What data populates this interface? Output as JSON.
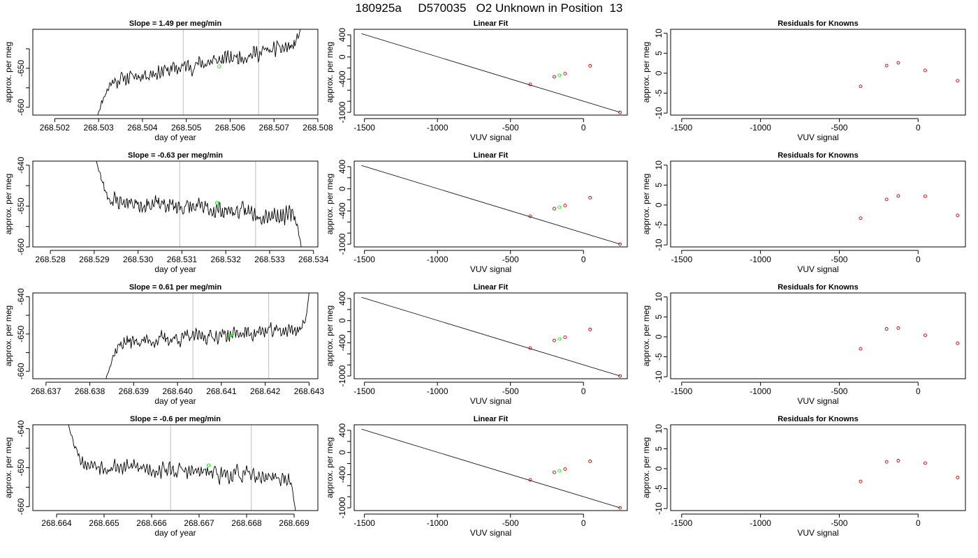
{
  "page": {
    "title": "180925a     D570035   O2 Unknown in Position  13"
  },
  "colors": {
    "line": "#000000",
    "marker": "#00ff00",
    "residual": "#cc0000",
    "vline": "#bebebe",
    "axis": "#000000"
  },
  "chart_data": [
    {
      "type": "line",
      "panel": "time",
      "row": 1,
      "title": "Slope =  1.49  per meg/min",
      "xlabel": "day of year",
      "ylabel": "approx. per meg",
      "xlim": [
        268.5015,
        268.508
      ],
      "ylim": [
        -662,
        -640
      ],
      "xticks": [
        268.502,
        268.503,
        268.504,
        268.505,
        268.506,
        268.507,
        268.508
      ],
      "xtick_labels": [
        "268.502",
        "268.503",
        "268.504",
        "268.505",
        "268.506",
        "268.507",
        "268.508"
      ],
      "yticks": [
        -660,
        -655,
        -650,
        -645
      ],
      "ytick_labels": [
        "-660",
        "",
        "-650",
        ""
      ],
      "vlines": [
        268.50493,
        268.50665
      ],
      "marker": {
        "x": 268.50575,
        "y": -649.5
      },
      "x_start": 268.50298,
      "x_end": 268.5076,
      "y_start": -662,
      "y_end": -640,
      "trend_start": -653.9,
      "slope_per_day": 2145,
      "noise": 2.4,
      "seed": 11
    },
    {
      "type": "line",
      "panel": "fit",
      "row": 1,
      "title": "Linear Fit",
      "xlabel": "VUV signal",
      "ylabel": "approx. per meg",
      "xlim": [
        -1570,
        300
      ],
      "ylim": [
        -1050,
        500
      ],
      "xticks": [
        -1500,
        -1000,
        -500,
        0
      ],
      "xtick_labels": [
        "-1500",
        "-1000",
        "-500",
        "0"
      ],
      "yticks": [
        -1000,
        -800,
        -600,
        -400,
        -200,
        0,
        200,
        400
      ],
      "ytick_labels": [
        "-1000",
        "",
        "",
        "-400",
        "",
        "0",
        "",
        "400"
      ],
      "fit_line": {
        "x": [
          -1520,
          250
        ],
        "y": [
          421,
          -1000
        ]
      },
      "knowns": {
        "x": [
          -365,
          -200,
          -126,
          45,
          250
        ],
        "y": [
          -495,
          -358,
          -301,
          -160,
          -1000
        ]
      },
      "unknown": {
        "x": -165,
        "y": -331
      }
    },
    {
      "type": "scatter",
      "panel": "resid",
      "row": 1,
      "title": "Residuals for Knowns",
      "xlabel": "VUV signal",
      "ylabel": "approx. per meg",
      "xlim": [
        -1570,
        300
      ],
      "ylim": [
        -10.5,
        11
      ],
      "xticks": [
        -1500,
        -1000,
        -500,
        0
      ],
      "xtick_labels": [
        "-1500",
        "-1000",
        "-500",
        "0"
      ],
      "yticks": [
        -10,
        -5,
        0,
        5,
        10
      ],
      "ytick_labels": [
        "-10",
        "-5",
        "0",
        "5",
        "10"
      ],
      "x": [
        -365,
        -200,
        -126,
        45,
        250
      ],
      "y": [
        -3.3,
        1.9,
        2.6,
        0.7,
        -1.9
      ]
    },
    {
      "type": "line",
      "panel": "time",
      "row": 2,
      "title": "Slope =  -0.63  per meg/min",
      "xlabel": "day of year",
      "ylabel": "approx. per meg",
      "xlim": [
        268.5276,
        268.5341
      ],
      "ylim": [
        -660,
        -639
      ],
      "xticks": [
        268.528,
        268.529,
        268.53,
        268.531,
        268.532,
        268.533,
        268.534
      ],
      "xtick_labels": [
        "268.528",
        "268.529",
        "268.530",
        "268.531",
        "268.532",
        "268.533",
        "268.534"
      ],
      "yticks": [
        -660,
        -655,
        -650,
        -645,
        -640
      ],
      "ytick_labels": [
        "-660",
        "",
        "-650",
        "",
        "-640"
      ],
      "vlines": [
        268.53095,
        268.53268
      ],
      "marker": {
        "x": 268.5318,
        "y": -649.2
      },
      "x_start": 268.52905,
      "x_end": 268.53372,
      "y_start": -639,
      "y_end": -660,
      "trend_start": -648.4,
      "slope_per_day": -907,
      "noise": 2.6,
      "seed": 23
    },
    {
      "type": "line",
      "panel": "fit",
      "row": 2,
      "title": "Linear Fit",
      "xlabel": "VUV signal",
      "ylabel": "approx. per meg",
      "xlim": [
        -1570,
        300
      ],
      "ylim": [
        -1050,
        500
      ],
      "xticks": [
        -1500,
        -1000,
        -500,
        0
      ],
      "xtick_labels": [
        "-1500",
        "-1000",
        "-500",
        "0"
      ],
      "yticks": [
        -1000,
        -800,
        -600,
        -400,
        -200,
        0,
        200,
        400
      ],
      "ytick_labels": [
        "-1000",
        "",
        "",
        "-400",
        "",
        "0",
        "",
        "400"
      ],
      "fit_line": {
        "x": [
          -1520,
          250
        ],
        "y": [
          421,
          -1000
        ]
      },
      "knowns": {
        "x": [
          -365,
          -200,
          -126,
          45,
          250
        ],
        "y": [
          -495,
          -358,
          -301,
          -160,
          -1000
        ]
      },
      "unknown": {
        "x": -165,
        "y": -331
      }
    },
    {
      "type": "scatter",
      "panel": "resid",
      "row": 2,
      "title": "Residuals for Knowns",
      "xlabel": "VUV signal",
      "ylabel": "approx. per meg",
      "xlim": [
        -1570,
        300
      ],
      "ylim": [
        -10.5,
        11
      ],
      "xticks": [
        -1500,
        -1000,
        -500,
        0
      ],
      "xtick_labels": [
        "-1500",
        "-1000",
        "-500",
        "0"
      ],
      "yticks": [
        -10,
        -5,
        0,
        5,
        10
      ],
      "ytick_labels": [
        "-10",
        "-5",
        "0",
        "5",
        "10"
      ],
      "x": [
        -365,
        -200,
        -126,
        45,
        250
      ],
      "y": [
        -3.3,
        1.4,
        2.3,
        2.2,
        -2.6
      ]
    },
    {
      "type": "line",
      "panel": "time",
      "row": 3,
      "title": "Slope =  0.61  per meg/min",
      "xlabel": "day of year",
      "ylabel": "approx. per meg",
      "xlim": [
        268.6367,
        268.6432
      ],
      "ylim": [
        -662,
        -639
      ],
      "xticks": [
        268.637,
        268.638,
        268.639,
        268.64,
        268.641,
        268.642,
        268.643
      ],
      "xtick_labels": [
        "268.637",
        "268.638",
        "268.639",
        "268.640",
        "268.641",
        "268.642",
        "268.643"
      ],
      "yticks": [
        -660,
        -655,
        -650,
        -645,
        -640
      ],
      "ytick_labels": [
        "-660",
        "",
        "-650",
        "",
        "-640"
      ],
      "vlines": [
        268.64035,
        268.64208
      ],
      "marker": {
        "x": 268.6412,
        "y": -650.3
      },
      "x_start": 268.63837,
      "x_end": 268.643,
      "y_start": -662,
      "y_end": -639,
      "trend_start": -652.6,
      "slope_per_day": 878,
      "noise": 2.4,
      "seed": 37
    },
    {
      "type": "line",
      "panel": "fit",
      "row": 3,
      "title": "Linear Fit",
      "xlabel": "VUV signal",
      "ylabel": "approx. per meg",
      "xlim": [
        -1570,
        300
      ],
      "ylim": [
        -1050,
        500
      ],
      "xticks": [
        -1500,
        -1000,
        -500,
        0
      ],
      "xtick_labels": [
        "-1500",
        "-1000",
        "-500",
        "0"
      ],
      "yticks": [
        -1000,
        -800,
        -600,
        -400,
        -200,
        0,
        200,
        400
      ],
      "ytick_labels": [
        "-1000",
        "",
        "",
        "-400",
        "",
        "0",
        "",
        "400"
      ],
      "fit_line": {
        "x": [
          -1520,
          250
        ],
        "y": [
          421,
          -1000
        ]
      },
      "knowns": {
        "x": [
          -365,
          -200,
          -126,
          45,
          250
        ],
        "y": [
          -495,
          -358,
          -301,
          -160,
          -1000
        ]
      },
      "unknown": {
        "x": -165,
        "y": -331
      }
    },
    {
      "type": "scatter",
      "panel": "resid",
      "row": 3,
      "title": "Residuals for Knowns",
      "xlabel": "VUV signal",
      "ylabel": "approx. per meg",
      "xlim": [
        -1570,
        300
      ],
      "ylim": [
        -10.5,
        11
      ],
      "xticks": [
        -1500,
        -1000,
        -500,
        0
      ],
      "xtick_labels": [
        "-1500",
        "-1000",
        "-500",
        "0"
      ],
      "yticks": [
        -10,
        -5,
        0,
        5,
        10
      ],
      "ytick_labels": [
        "-10",
        "-5",
        "0",
        "5",
        "10"
      ],
      "x": [
        -365,
        -200,
        -126,
        45,
        250
      ],
      "y": [
        -3.0,
        2.0,
        2.2,
        0.4,
        -1.6
      ]
    },
    {
      "type": "line",
      "panel": "time",
      "row": 4,
      "title": "Slope =  -0.6  per meg/min",
      "xlabel": "day of year",
      "ylabel": "approx. per meg",
      "xlim": [
        268.6635,
        268.6695
      ],
      "ylim": [
        -661,
        -639
      ],
      "xticks": [
        268.664,
        268.665,
        268.666,
        268.667,
        268.668,
        268.669
      ],
      "xtick_labels": [
        "268.664",
        "268.665",
        "268.666",
        "268.667",
        "268.668",
        "268.669"
      ],
      "yticks": [
        -660,
        -655,
        -650,
        -645,
        -640
      ],
      "ytick_labels": [
        "-660",
        "",
        "-650",
        "",
        "-640"
      ],
      "vlines": [
        268.6664,
        268.6681
      ],
      "marker": {
        "x": 268.6672,
        "y": -649.4
      },
      "x_start": 268.66425,
      "x_end": 268.66903,
      "y_start": -639,
      "y_end": -661,
      "trend_start": -648.8,
      "slope_per_day": -864,
      "noise": 2.5,
      "seed": 53
    },
    {
      "type": "line",
      "panel": "fit",
      "row": 4,
      "title": "Linear Fit",
      "xlabel": "VUV signal",
      "ylabel": "approx. per meg",
      "xlim": [
        -1570,
        300
      ],
      "ylim": [
        -1050,
        500
      ],
      "xticks": [
        -1500,
        -1000,
        -500,
        0
      ],
      "xtick_labels": [
        "-1500",
        "-1000",
        "-500",
        "0"
      ],
      "yticks": [
        -1000,
        -800,
        -600,
        -400,
        -200,
        0,
        200,
        400
      ],
      "ytick_labels": [
        "-1000",
        "",
        "",
        "-400",
        "",
        "0",
        "",
        "400"
      ],
      "fit_line": {
        "x": [
          -1520,
          250
        ],
        "y": [
          421,
          -1000
        ]
      },
      "knowns": {
        "x": [
          -365,
          -200,
          -126,
          45,
          250
        ],
        "y": [
          -495,
          -358,
          -301,
          -160,
          -1000
        ]
      },
      "unknown": {
        "x": -165,
        "y": -331
      }
    },
    {
      "type": "scatter",
      "panel": "resid",
      "row": 4,
      "title": "Residuals for Knowns",
      "xlabel": "VUV signal",
      "ylabel": "approx. per meg",
      "xlim": [
        -1570,
        300
      ],
      "ylim": [
        -10.5,
        11
      ],
      "xticks": [
        -1500,
        -1000,
        -500,
        0
      ],
      "xtick_labels": [
        "-1500",
        "-1000",
        "-500",
        "0"
      ],
      "yticks": [
        -10,
        -5,
        0,
        5,
        10
      ],
      "ytick_labels": [
        "-10",
        "-5",
        "0",
        "5",
        "10"
      ],
      "x": [
        -365,
        -200,
        -126,
        45,
        250
      ],
      "y": [
        -3.2,
        1.7,
        2.0,
        1.4,
        -2.2
      ]
    }
  ]
}
